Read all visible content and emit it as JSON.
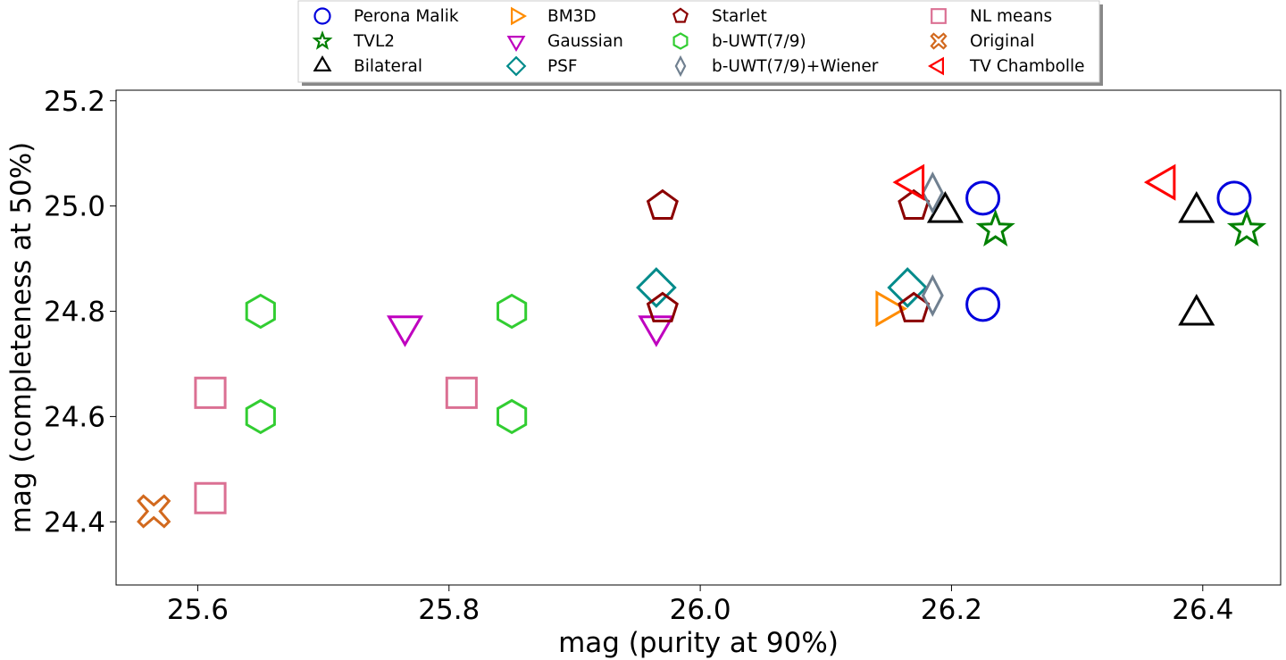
{
  "chart_data": {
    "type": "scatter",
    "title": "",
    "xlabel": "mag (purity at 90%)",
    "ylabel": "mag (completeness at 50%)",
    "xlim": [
      25.535,
      26.462
    ],
    "ylim": [
      24.28,
      25.22
    ],
    "xticks": [
      25.6,
      25.8,
      26.0,
      26.2,
      26.4
    ],
    "yticks": [
      24.4,
      24.6,
      24.8,
      25.0,
      25.2
    ],
    "xtick_labels": [
      "25.6",
      "25.8",
      "26.0",
      "26.2",
      "26.4"
    ],
    "ytick_labels": [
      "24.4",
      "24.6",
      "24.8",
      "25.0",
      "25.2"
    ],
    "grid": false,
    "legend_position": "top-center, outside plot",
    "series": [
      {
        "name": "Perona Malik",
        "marker": "circle",
        "color": "#0000dd",
        "points": [
          [
            26.225,
            25.015
          ],
          [
            26.225,
            24.813
          ],
          [
            26.425,
            25.015
          ]
        ]
      },
      {
        "name": "TVL2",
        "marker": "star",
        "color": "#008000",
        "points": [
          [
            26.235,
            24.955
          ],
          [
            26.435,
            24.955
          ]
        ]
      },
      {
        "name": "Bilateral",
        "marker": "triangle-up",
        "color": "#000000",
        "points": [
          [
            26.195,
            24.988
          ],
          [
            26.395,
            24.988
          ],
          [
            26.395,
            24.793
          ]
        ]
      },
      {
        "name": "BM3D",
        "marker": "triangle-right",
        "color": "#ff8c00",
        "points": [
          [
            26.148,
            24.805
          ]
        ]
      },
      {
        "name": "Gaussian",
        "marker": "triangle-down",
        "color": "#bf00bf",
        "points": [
          [
            25.765,
            24.772
          ],
          [
            25.965,
            24.772
          ]
        ]
      },
      {
        "name": "PSF",
        "marker": "diamond",
        "color": "#008b8b",
        "points": [
          [
            25.965,
            24.845
          ],
          [
            26.165,
            24.845
          ]
        ]
      },
      {
        "name": "Starlet",
        "marker": "pentagon",
        "color": "#8b0000",
        "points": [
          [
            25.97,
            25.0
          ],
          [
            25.97,
            24.805
          ],
          [
            26.17,
            25.0
          ],
          [
            26.17,
            24.805
          ]
        ]
      },
      {
        "name": "b-UWT(7/9)",
        "marker": "hexagon",
        "color": "#32cd32",
        "points": [
          [
            25.65,
            24.8
          ],
          [
            25.65,
            24.6
          ],
          [
            25.85,
            24.8
          ],
          [
            25.85,
            24.6
          ]
        ]
      },
      {
        "name": "b-UWT(7/9)+Wiener",
        "marker": "thin-diamond",
        "color": "#708090",
        "points": [
          [
            26.185,
            25.025
          ],
          [
            26.185,
            24.83
          ]
        ]
      },
      {
        "name": "NL means",
        "marker": "square",
        "color": "#db7093",
        "points": [
          [
            25.61,
            24.645
          ],
          [
            25.61,
            24.445
          ],
          [
            25.81,
            24.645
          ]
        ]
      },
      {
        "name": "Original",
        "marker": "x-filled",
        "color": "#d2691e",
        "points": [
          [
            25.565,
            24.42
          ]
        ]
      },
      {
        "name": "TV Chambolle",
        "marker": "triangle-left",
        "color": "#ff0000",
        "points": [
          [
            26.17,
            25.045
          ],
          [
            26.37,
            25.045
          ]
        ]
      }
    ]
  }
}
